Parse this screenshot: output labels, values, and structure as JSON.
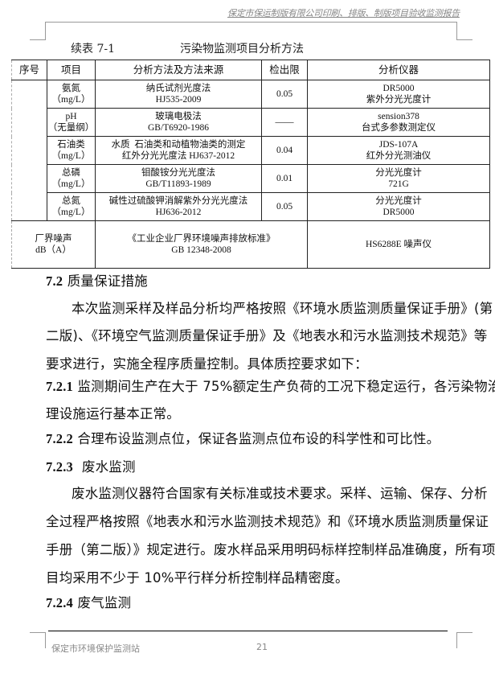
{
  "header": {
    "running_title": "保定市保运制版有限公司印刷、排版、制版项目验收监测报告"
  },
  "caption": {
    "label": "续表 7-1",
    "title": "污染物监测项目分析方法"
  },
  "table": {
    "headers": [
      "序号",
      "项目",
      "分析方法及方法来源",
      "检出限",
      "分析仪器"
    ],
    "rows": [
      {
        "item": [
          "氨氮",
          "（mg/L）"
        ],
        "method": [
          "纳氏试剂光度法",
          "HJ535-2009"
        ],
        "limit": "0.05",
        "instrument": [
          "DR5000",
          "紫外分光光度计"
        ]
      },
      {
        "item": [
          "pH",
          "（无量纲）"
        ],
        "method": [
          "玻璃电极法",
          "GB/T6920-1986"
        ],
        "limit": "——",
        "instrument": [
          "sension378",
          "台式多参数测定仪"
        ]
      },
      {
        "item": [
          "石油类",
          "（mg/L）"
        ],
        "method": [
          "水质  石油类和动植物油类的测定",
          "红外分光光度法 HJ637-2012"
        ],
        "limit": "0.04",
        "instrument": [
          "JDS-107A",
          "红外分光测油仪"
        ]
      },
      {
        "item": [
          "总磷",
          "（mg/L）"
        ],
        "method": [
          "钼酸铵分光光度法",
          "GB/T11893-1989"
        ],
        "limit": "0.01",
        "instrument": [
          "分光光度计",
          "721G"
        ]
      },
      {
        "item": [
          "总氮",
          "（mg/L）"
        ],
        "method": [
          "碱性过硫酸钾消解紫外分光光度法",
          "HJ636-2012"
        ],
        "limit": "0.05",
        "instrument": [
          "分光光度计",
          "DR5000"
        ]
      }
    ],
    "noise_row": {
      "item": [
        "厂界噪声",
        "dB（A）"
      ],
      "method": [
        "《工业企业厂界环境噪声排放标准》",
        "GB 12348-2008"
      ],
      "instrument": "HS6288E 噪声仪"
    }
  },
  "body": {
    "s72": {
      "num": "7.2",
      "title": "质量保证措施"
    },
    "p1": [
      "本次监测采样及样品分析均严格按照《环境水质监测质量保证手册》(第",
      "二版)、《环境空气监测质量保证手册》及《地表水和污水监测技术规范》等",
      "要求进行，实施全程序质量控制。具体质控要求如下："
    ],
    "s721": {
      "num": "7.2.1",
      "lines": [
        "监测期间生产在大于 75%额定生产负荷的工况下稳定运行，各污染物治",
        "理设施运行基本正常。"
      ]
    },
    "s722": {
      "num": "7.2.2",
      "text": "合理布设监测点位，保证各监测点位布设的科学性和可比性。"
    },
    "s723": {
      "num": "7.2.3",
      "title": "废水监测"
    },
    "p2": [
      "废水监测仪器符合国家有关标准或技术要求。采样、运输、保存、分析",
      "全过程严格按照《地表水和污水监测技术规范》和《环境水质监测质量保证",
      "手册（第二版）》规定进行。废水样品采用明码标样控制样品准确度，所有项",
      "目均采用不少于 10%平行样分析控制样品精密度。"
    ],
    "s724": {
      "num": "7.2.4",
      "title": "废气监测"
    }
  },
  "footer": {
    "org": "保定市环境保护监测站",
    "page": "21"
  }
}
